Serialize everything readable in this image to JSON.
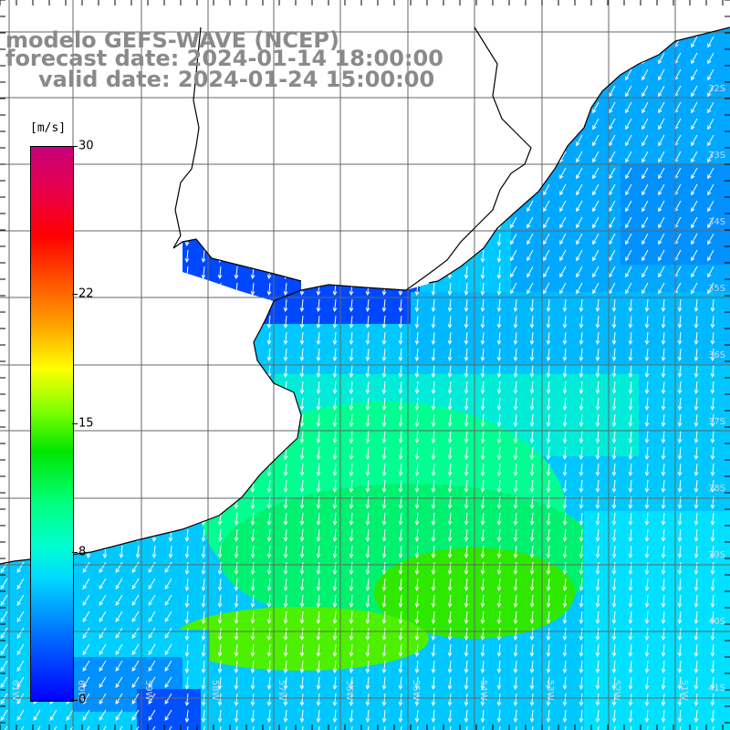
{
  "title": {
    "line1": "modelo GEFS-WAVE (NCEP)",
    "line2": "forecast date: 2024-01-14 18:00:00",
    "line3": "valid date: 2024-01-24 15:00:00"
  },
  "colorbar": {
    "unit": "[m/s]",
    "ticks": [
      "30",
      "22",
      "15",
      "8",
      "0"
    ],
    "tick_values": [
      30,
      22,
      15,
      8,
      0
    ],
    "range": [
      0,
      30
    ],
    "colors": [
      "#0000ff",
      "#00d8ff",
      "#00e600",
      "#ffff00",
      "#ff0000",
      "#c8007a"
    ]
  },
  "map": {
    "lat_labels": [
      "32S",
      "33S",
      "34S",
      "35S",
      "36S",
      "37S",
      "38S",
      "39S",
      "40S",
      "41S"
    ],
    "lon_labels": [
      "61W",
      "60W",
      "59W",
      "58W",
      "57W",
      "56W",
      "55W",
      "54W",
      "53W",
      "52W",
      "51W"
    ],
    "wind_direction": "from north",
    "colors": {
      "strong": "#00e600",
      "moderate": "#00ffcc",
      "light": "#00aaff",
      "calm": "#0040ff",
      "land": "#ffffff",
      "grid": "#666666",
      "coast": "#000000"
    }
  }
}
